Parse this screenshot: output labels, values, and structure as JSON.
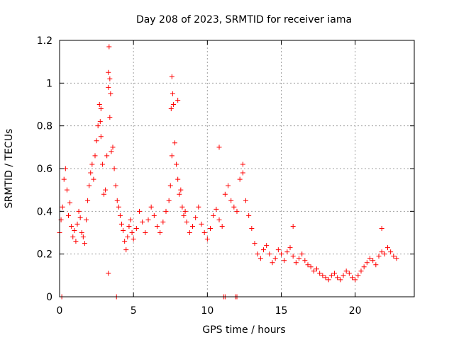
{
  "chart_data": {
    "type": "scatter",
    "title": "Day 208 of 2023, SRMTID for receiver iama",
    "xlabel": "GPS time / hours",
    "ylabel": "SRMTID / TECUs",
    "xlim": [
      0,
      24
    ],
    "ylim": [
      0,
      1.2
    ],
    "xticks": [
      0,
      5,
      10,
      15,
      20
    ],
    "yticks": [
      0,
      0.2,
      0.4,
      0.6,
      0.8,
      1,
      1.2
    ],
    "x_tick_labels": [
      "0",
      "5",
      "10",
      "15",
      "20"
    ],
    "y_tick_labels": [
      "0",
      "0.2",
      "0.4",
      "0.6",
      "0.8",
      "1",
      "1.2"
    ],
    "grid": true,
    "marker": "+",
    "series": [
      {
        "name": "SRMTID",
        "color": "#ff0000",
        "x": [
          0.0,
          0.1,
          0.2,
          0.3,
          0.4,
          0.5,
          0.6,
          0.7,
          0.8,
          0.9,
          1.0,
          1.1,
          1.2,
          1.3,
          1.4,
          1.5,
          1.6,
          1.7,
          1.8,
          1.9,
          2.0,
          2.1,
          2.2,
          2.3,
          2.4,
          2.5,
          2.6,
          2.7,
          2.8,
          2.9,
          3.0,
          3.1,
          3.2,
          3.3,
          3.4,
          3.5,
          3.6,
          3.7,
          3.8,
          3.9,
          4.0,
          4.1,
          4.2,
          4.3,
          4.4,
          4.5,
          4.6,
          4.7,
          4.8,
          4.9,
          5.0,
          5.2,
          5.4,
          5.6,
          5.8,
          6.0,
          6.2,
          6.4,
          6.6,
          6.8,
          7.0,
          7.2,
          7.4,
          7.5,
          7.6,
          7.7,
          7.8,
          7.9,
          8.0,
          8.1,
          8.2,
          8.3,
          8.4,
          8.5,
          8.6,
          8.8,
          9.0,
          9.2,
          9.4,
          9.6,
          9.8,
          10.0,
          10.2,
          10.4,
          10.6,
          10.8,
          11.0,
          11.2,
          11.4,
          11.6,
          11.8,
          12.0,
          12.2,
          12.4,
          12.6,
          12.8,
          13.0,
          13.2,
          13.4,
          13.6,
          13.8,
          14.0,
          14.2,
          14.4,
          14.6,
          14.8,
          15.0,
          15.2,
          15.4,
          15.6,
          15.8,
          16.0,
          16.2,
          16.4,
          16.6,
          16.8,
          17.0,
          17.2,
          17.4,
          17.6,
          17.8,
          18.0,
          18.2,
          18.4,
          18.6,
          18.8,
          19.0,
          19.2,
          19.4,
          19.6,
          19.8,
          20.0,
          20.2,
          20.4,
          20.6,
          20.8,
          21.0,
          21.2,
          21.4,
          21.6,
          21.8,
          22.0,
          22.2,
          22.4,
          22.6,
          22.8,
          3.35,
          3.4,
          3.3,
          2.75,
          2.8,
          3.45,
          7.6,
          7.65,
          7.55,
          8.0,
          3.3,
          3.85,
          11.1,
          11.2,
          11.9,
          12.0,
          0.15,
          10.8,
          12.4,
          15.8,
          21.8
        ],
        "y": [
          0.3,
          0.36,
          0.42,
          0.55,
          0.6,
          0.5,
          0.38,
          0.44,
          0.33,
          0.28,
          0.31,
          0.26,
          0.34,
          0.4,
          0.37,
          0.3,
          0.28,
          0.25,
          0.36,
          0.45,
          0.52,
          0.58,
          0.62,
          0.55,
          0.66,
          0.73,
          0.8,
          0.9,
          0.75,
          0.62,
          0.48,
          0.5,
          0.66,
          0.98,
          0.84,
          0.68,
          0.7,
          0.6,
          0.52,
          0.45,
          0.42,
          0.38,
          0.34,
          0.31,
          0.26,
          0.22,
          0.28,
          0.33,
          0.36,
          0.3,
          0.27,
          0.32,
          0.4,
          0.35,
          0.3,
          0.36,
          0.42,
          0.38,
          0.33,
          0.3,
          0.35,
          0.4,
          0.45,
          0.52,
          0.66,
          0.9,
          0.72,
          0.62,
          0.55,
          0.48,
          0.5,
          0.42,
          0.38,
          0.4,
          0.35,
          0.3,
          0.33,
          0.37,
          0.42,
          0.34,
          0.3,
          0.27,
          0.32,
          0.38,
          0.41,
          0.36,
          0.33,
          0.48,
          0.52,
          0.45,
          0.42,
          0.4,
          0.55,
          0.58,
          0.45,
          0.38,
          0.32,
          0.25,
          0.2,
          0.18,
          0.22,
          0.24,
          0.2,
          0.16,
          0.18,
          0.22,
          0.2,
          0.17,
          0.21,
          0.23,
          0.19,
          0.16,
          0.18,
          0.2,
          0.17,
          0.15,
          0.14,
          0.12,
          0.13,
          0.11,
          0.1,
          0.09,
          0.08,
          0.1,
          0.11,
          0.09,
          0.08,
          0.1,
          0.12,
          0.11,
          0.09,
          0.08,
          0.1,
          0.12,
          0.14,
          0.16,
          0.18,
          0.17,
          0.15,
          0.19,
          0.21,
          0.2,
          0.23,
          0.21,
          0.19,
          0.18,
          1.17,
          1.02,
          1.05,
          0.82,
          0.88,
          0.95,
          1.03,
          0.95,
          0.88,
          0.92,
          0.11,
          0.0,
          0.0,
          0.0,
          0.0,
          0.0,
          0.0,
          0.7,
          0.62,
          0.33,
          0.32
        ]
      }
    ]
  }
}
